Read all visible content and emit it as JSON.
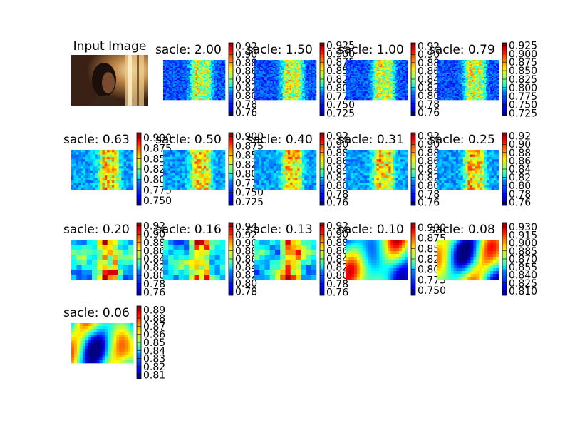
{
  "figure": {
    "input_title": "Input Image"
  },
  "chart_data": [
    {
      "type": "heatmap",
      "title": "sacle: 2.00",
      "colorbar_ticks": [
        "0.92",
        "0.90",
        "0.88",
        "0.86",
        "0.84",
        "0.82",
        "0.80",
        "0.78",
        "0.76"
      ],
      "clim": [
        0.752,
        0.928
      ],
      "pattern": "fine",
      "seed": 11
    },
    {
      "type": "heatmap",
      "title": "sacle: 1.50",
      "colorbar_ticks": [
        "0.925",
        "0.900",
        "0.875",
        "0.850",
        "0.825",
        "0.800",
        "0.775",
        "0.750",
        "0.725"
      ],
      "clim": [
        0.718,
        0.932
      ],
      "pattern": "fine",
      "seed": 12
    },
    {
      "type": "heatmap",
      "title": "sacle: 1.00",
      "colorbar_ticks": [
        "0.92",
        "0.90",
        "0.88",
        "0.86",
        "0.84",
        "0.82",
        "0.80",
        "0.78",
        "0.76"
      ],
      "clim": [
        0.752,
        0.928
      ],
      "pattern": "fine",
      "seed": 13
    },
    {
      "type": "heatmap",
      "title": "sacle: 0.79",
      "colorbar_ticks": [
        "0.925",
        "0.900",
        "0.875",
        "0.850",
        "0.825",
        "0.800",
        "0.775",
        "0.750",
        "0.725"
      ],
      "clim": [
        0.718,
        0.932
      ],
      "pattern": "fine",
      "seed": 14
    },
    {
      "type": "heatmap",
      "title": "sacle: 0.63",
      "colorbar_ticks": [
        "0.900",
        "0.875",
        "0.850",
        "0.825",
        "0.800",
        "0.775",
        "0.750"
      ],
      "clim": [
        0.738,
        0.912
      ],
      "pattern": "medium",
      "seed": 21
    },
    {
      "type": "heatmap",
      "title": "sacle: 0.50",
      "colorbar_ticks": [
        "0.900",
        "0.875",
        "0.850",
        "0.825",
        "0.800",
        "0.775",
        "0.750",
        "0.725"
      ],
      "clim": [
        0.715,
        0.91
      ],
      "pattern": "medium",
      "seed": 22
    },
    {
      "type": "heatmap",
      "title": "sacle: 0.40",
      "colorbar_ticks": [
        "0.92",
        "0.90",
        "0.88",
        "0.86",
        "0.84",
        "0.82",
        "0.80",
        "0.78",
        "0.76"
      ],
      "clim": [
        0.752,
        0.928
      ],
      "pattern": "medium",
      "seed": 23
    },
    {
      "type": "heatmap",
      "title": "sacle: 0.31",
      "colorbar_ticks": [
        "0.92",
        "0.90",
        "0.88",
        "0.86",
        "0.84",
        "0.82",
        "0.80",
        "0.78",
        "0.76"
      ],
      "clim": [
        0.752,
        0.928
      ],
      "pattern": "medium",
      "seed": 24
    },
    {
      "type": "heatmap",
      "title": "sacle: 0.25",
      "colorbar_ticks": [
        "0.92",
        "0.90",
        "0.88",
        "0.86",
        "0.84",
        "0.82",
        "0.80",
        "0.78",
        "0.76"
      ],
      "clim": [
        0.752,
        0.928
      ],
      "pattern": "medium",
      "seed": 25
    },
    {
      "type": "heatmap",
      "title": "sacle: 0.20",
      "colorbar_ticks": [
        "0.92",
        "0.90",
        "0.88",
        "0.86",
        "0.84",
        "0.82",
        "0.80",
        "0.78",
        "0.76"
      ],
      "clim": [
        0.752,
        0.928
      ],
      "pattern": "coarse",
      "seed": 31
    },
    {
      "type": "heatmap",
      "title": "sacle: 0.16",
      "colorbar_ticks": [
        "0.94",
        "0.92",
        "0.90",
        "0.88",
        "0.86",
        "0.84",
        "0.82",
        "0.80",
        "0.78"
      ],
      "clim": [
        0.77,
        0.95
      ],
      "pattern": "coarse",
      "seed": 32
    },
    {
      "type": "heatmap",
      "title": "sacle: 0.13",
      "colorbar_ticks": [
        "0.92",
        "0.90",
        "0.88",
        "0.86",
        "0.84",
        "0.82",
        "0.80",
        "0.78",
        "0.76"
      ],
      "clim": [
        0.752,
        0.928
      ],
      "pattern": "coarse",
      "seed": 33
    },
    {
      "type": "heatmap",
      "title": "sacle: 0.10",
      "colorbar_ticks": [
        "0.900",
        "0.875",
        "0.850",
        "0.825",
        "0.800",
        "0.775",
        "0.750"
      ],
      "clim": [
        0.738,
        0.912
      ],
      "pattern": "blurry",
      "seed": 34
    },
    {
      "type": "heatmap",
      "title": "sacle: 0.08",
      "colorbar_ticks": [
        "0.930",
        "0.915",
        "0.900",
        "0.885",
        "0.870",
        "0.855",
        "0.840",
        "0.825",
        "0.810"
      ],
      "clim": [
        0.802,
        0.938
      ],
      "pattern": "blurry",
      "seed": 35
    },
    {
      "type": "heatmap",
      "title": "sacle: 0.06",
      "colorbar_ticks": [
        "0.89",
        "0.88",
        "0.87",
        "0.86",
        "0.85",
        "0.84",
        "0.83",
        "0.82",
        "0.81"
      ],
      "clim": [
        0.805,
        0.895
      ],
      "pattern": "blurry",
      "seed": 41
    }
  ]
}
